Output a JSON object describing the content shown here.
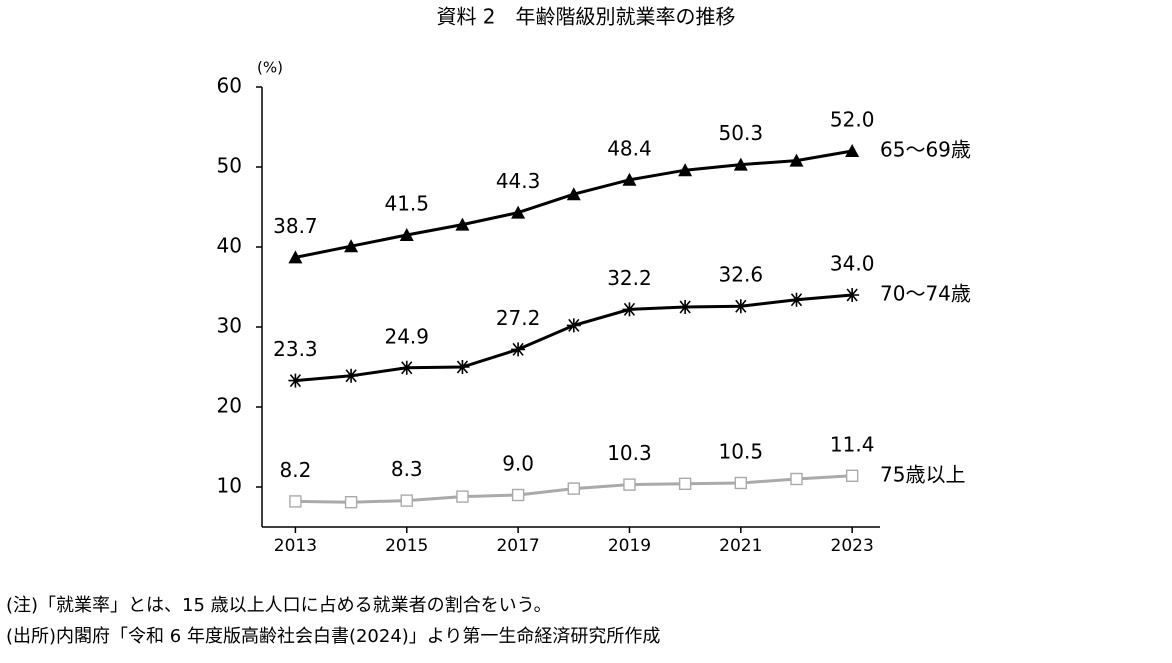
{
  "chart_data": {
    "type": "line",
    "title": "資料 2　年齢階級別就業率の推移",
    "y_unit": "(%)",
    "x": [
      2013,
      2014,
      2015,
      2016,
      2017,
      2018,
      2019,
      2020,
      2021,
      2022,
      2023
    ],
    "xlim": [
      2012.4,
      2023.5
    ],
    "xticks": [
      2013,
      2015,
      2017,
      2019,
      2021,
      2023
    ],
    "ylim": [
      5,
      60
    ],
    "yticks": [
      10,
      20,
      30,
      40,
      50,
      60
    ],
    "series": [
      {
        "name": "65〜69歳",
        "color": "#000000",
        "marker": "triangle",
        "values": [
          38.7,
          40.1,
          41.5,
          42.8,
          44.3,
          46.6,
          48.4,
          49.6,
          50.3,
          50.8,
          52.0
        ],
        "value_labels": [
          "38.7",
          null,
          "41.5",
          null,
          "44.3",
          null,
          "48.4",
          null,
          "50.3",
          null,
          "52.0"
        ]
      },
      {
        "name": "70〜74歳",
        "color": "#000000",
        "marker": "asterisk",
        "values": [
          23.3,
          23.9,
          24.9,
          25.0,
          27.2,
          30.2,
          32.2,
          32.5,
          32.6,
          33.4,
          34.0
        ],
        "value_labels": [
          "23.3",
          null,
          "24.9",
          null,
          "27.2",
          null,
          "32.2",
          null,
          "32.6",
          null,
          "34.0"
        ]
      },
      {
        "name": "75歳以上",
        "color": "#aaaaaa",
        "marker": "square",
        "values": [
          8.2,
          8.1,
          8.3,
          8.8,
          9.0,
          9.8,
          10.3,
          10.4,
          10.5,
          11.0,
          11.4
        ],
        "value_labels": [
          "8.2",
          null,
          "8.3",
          null,
          "9.0",
          null,
          "10.3",
          null,
          "10.5",
          null,
          "11.4"
        ]
      }
    ],
    "notes": [
      "(注)「就業率」とは、15 歳以上人口に占める就業者の割合をいう。",
      "(出所)内閣府「令和 6 年度版高齢社会白書(2024)」より第一生命経済研究所作成"
    ]
  }
}
